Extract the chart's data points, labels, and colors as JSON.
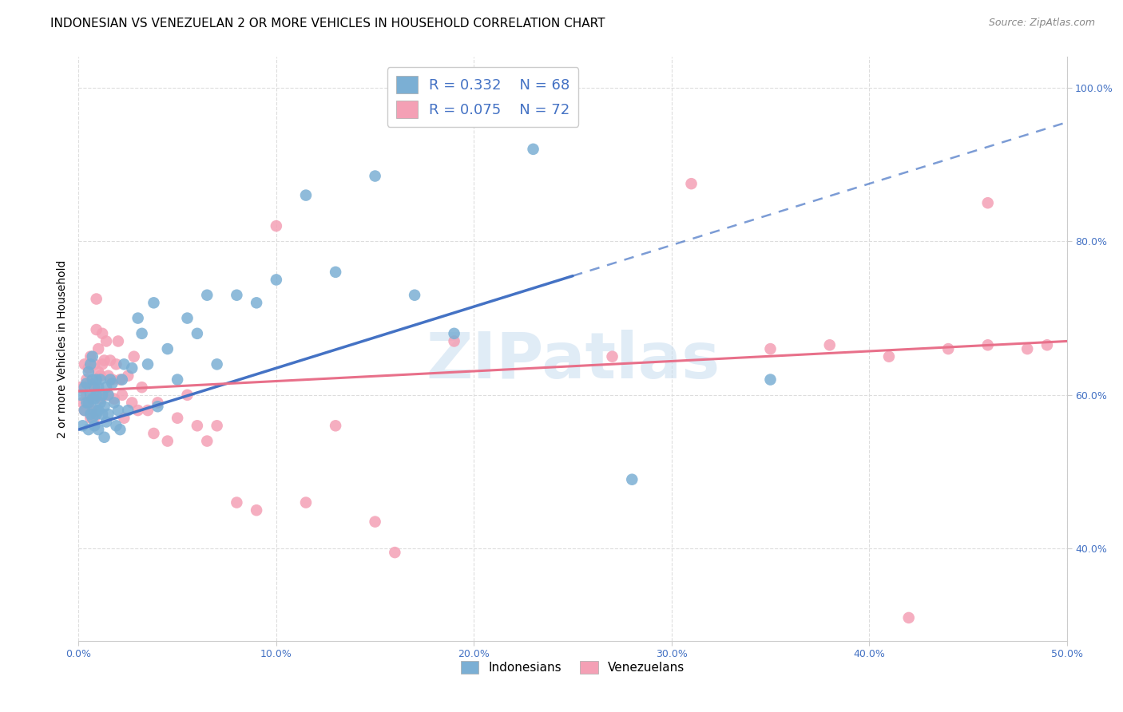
{
  "title": "INDONESIAN VS VENEZUELAN 2 OR MORE VEHICLES IN HOUSEHOLD CORRELATION CHART",
  "source": "Source: ZipAtlas.com",
  "ylabel": "2 or more Vehicles in Household",
  "xlim": [
    0.0,
    0.5
  ],
  "ylim": [
    0.28,
    1.04
  ],
  "xticks": [
    0.0,
    0.1,
    0.2,
    0.3,
    0.4,
    0.5
  ],
  "xticklabels": [
    "0.0%",
    "10.0%",
    "20.0%",
    "30.0%",
    "40.0%",
    "50.0%"
  ],
  "yticks": [
    0.4,
    0.6,
    0.8,
    1.0
  ],
  "yticklabels": [
    "40.0%",
    "60.0%",
    "80.0%",
    "100.0%"
  ],
  "indonesian_color": "#7bafd4",
  "venezuelan_color": "#f4a0b5",
  "indonesian_line_color": "#4472c4",
  "venezuelan_line_color": "#e8708a",
  "tick_color": "#4472c4",
  "background_color": "#ffffff",
  "grid_color": "#dddddd",
  "title_fontsize": 11,
  "axis_label_fontsize": 10,
  "tick_fontsize": 9,
  "legend_fontsize": 13,
  "source_fontsize": 9,
  "indonesian_x": [
    0.001,
    0.002,
    0.003,
    0.003,
    0.004,
    0.004,
    0.005,
    0.005,
    0.005,
    0.006,
    0.006,
    0.006,
    0.007,
    0.007,
    0.007,
    0.007,
    0.008,
    0.008,
    0.008,
    0.008,
    0.009,
    0.009,
    0.009,
    0.01,
    0.01,
    0.01,
    0.011,
    0.011,
    0.012,
    0.012,
    0.013,
    0.013,
    0.014,
    0.014,
    0.015,
    0.015,
    0.016,
    0.017,
    0.018,
    0.019,
    0.02,
    0.021,
    0.022,
    0.023,
    0.025,
    0.027,
    0.03,
    0.032,
    0.035,
    0.038,
    0.04,
    0.045,
    0.05,
    0.055,
    0.06,
    0.065,
    0.07,
    0.08,
    0.09,
    0.1,
    0.115,
    0.13,
    0.15,
    0.17,
    0.19,
    0.23,
    0.28,
    0.35
  ],
  "indonesian_y": [
    0.6,
    0.56,
    0.61,
    0.58,
    0.615,
    0.59,
    0.555,
    0.59,
    0.63,
    0.575,
    0.6,
    0.64,
    0.57,
    0.595,
    0.62,
    0.65,
    0.56,
    0.58,
    0.61,
    0.595,
    0.575,
    0.6,
    0.62,
    0.58,
    0.61,
    0.555,
    0.59,
    0.62,
    0.575,
    0.6,
    0.545,
    0.585,
    0.565,
    0.61,
    0.575,
    0.6,
    0.62,
    0.615,
    0.59,
    0.56,
    0.58,
    0.555,
    0.62,
    0.64,
    0.58,
    0.635,
    0.7,
    0.68,
    0.64,
    0.72,
    0.585,
    0.66,
    0.62,
    0.7,
    0.68,
    0.73,
    0.64,
    0.73,
    0.72,
    0.75,
    0.86,
    0.76,
    0.885,
    0.73,
    0.68,
    0.92,
    0.49,
    0.62
  ],
  "venezuelan_x": [
    0.001,
    0.002,
    0.003,
    0.003,
    0.004,
    0.004,
    0.005,
    0.005,
    0.006,
    0.006,
    0.006,
    0.007,
    0.007,
    0.008,
    0.008,
    0.008,
    0.009,
    0.009,
    0.01,
    0.01,
    0.01,
    0.011,
    0.011,
    0.012,
    0.012,
    0.013,
    0.013,
    0.014,
    0.015,
    0.015,
    0.016,
    0.017,
    0.018,
    0.019,
    0.02,
    0.021,
    0.022,
    0.023,
    0.025,
    0.027,
    0.028,
    0.03,
    0.032,
    0.035,
    0.038,
    0.04,
    0.045,
    0.05,
    0.055,
    0.06,
    0.065,
    0.07,
    0.08,
    0.09,
    0.1,
    0.115,
    0.13,
    0.15,
    0.16,
    0.19,
    0.23,
    0.27,
    0.31,
    0.35,
    0.38,
    0.41,
    0.44,
    0.46,
    0.48,
    0.49,
    0.42,
    0.46
  ],
  "venezuelan_y": [
    0.61,
    0.59,
    0.64,
    0.58,
    0.62,
    0.6,
    0.635,
    0.59,
    0.57,
    0.615,
    0.65,
    0.58,
    0.6,
    0.57,
    0.61,
    0.64,
    0.725,
    0.685,
    0.6,
    0.63,
    0.66,
    0.595,
    0.625,
    0.64,
    0.68,
    0.6,
    0.645,
    0.67,
    0.625,
    0.6,
    0.645,
    0.62,
    0.595,
    0.64,
    0.67,
    0.62,
    0.6,
    0.57,
    0.625,
    0.59,
    0.65,
    0.58,
    0.61,
    0.58,
    0.55,
    0.59,
    0.54,
    0.57,
    0.6,
    0.56,
    0.54,
    0.56,
    0.46,
    0.45,
    0.82,
    0.46,
    0.56,
    0.435,
    0.395,
    0.67,
    0.97,
    0.65,
    0.875,
    0.66,
    0.665,
    0.65,
    0.66,
    0.665,
    0.66,
    0.665,
    0.31,
    0.85
  ]
}
